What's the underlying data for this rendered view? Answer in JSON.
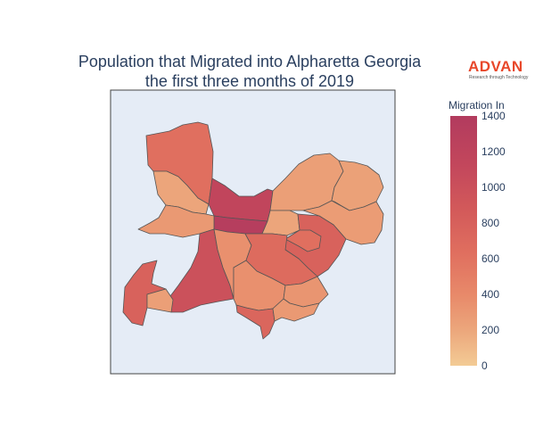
{
  "title": {
    "line1": "Population that Migrated into Alpharetta Georgia",
    "line2": "the first three months of 2019"
  },
  "logo": {
    "word": "ADVAN",
    "tagline": "Research through Technology",
    "color": "#e8472a"
  },
  "colorbar": {
    "title": "Migration In",
    "min": 0,
    "max": 1400,
    "ticks": [
      "1400",
      "1200",
      "1000",
      "800",
      "600",
      "400",
      "200",
      "0"
    ],
    "colorscale": [
      "#f3cb95",
      "#eca77c",
      "#e88a6a",
      "#e06f5f",
      "#d35a5a",
      "#c3475c",
      "#b23b5e"
    ]
  },
  "map": {
    "background": "#e5ecf6",
    "border_color": "#444444",
    "regions": [
      {
        "name": "north",
        "value": 700
      },
      {
        "name": "northwest-notch",
        "value": 250
      },
      {
        "name": "central-peak",
        "value": 1200
      },
      {
        "name": "central-strip",
        "value": 1350
      },
      {
        "name": "west-thin",
        "value": 350
      },
      {
        "name": "northeast",
        "value": 300
      },
      {
        "name": "northeast-east",
        "value": 280
      },
      {
        "name": "center-east",
        "value": 250
      },
      {
        "name": "east",
        "value": 320
      },
      {
        "name": "east-loop",
        "value": 850
      },
      {
        "name": "east-inner",
        "value": 700
      },
      {
        "name": "west-long",
        "value": 1050
      },
      {
        "name": "center-south",
        "value": 420
      },
      {
        "name": "south-center",
        "value": 750
      },
      {
        "name": "southwest",
        "value": 850
      },
      {
        "name": "southwest-notch",
        "value": 300
      },
      {
        "name": "south-lower",
        "value": 420
      },
      {
        "name": "south-tail",
        "value": 800
      },
      {
        "name": "southeast-corner",
        "value": 380
      },
      {
        "name": "south-right",
        "value": 350
      }
    ]
  }
}
